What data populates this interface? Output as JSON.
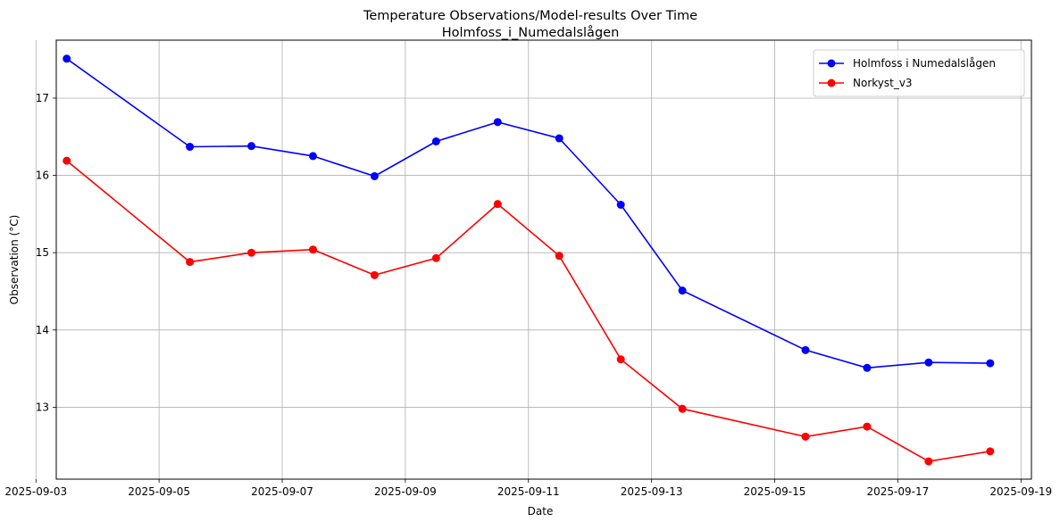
{
  "chart_data": {
    "type": "line",
    "title": "Temperature Observations/Model-results Over Time",
    "subtitle": "Holmfoss_i_Numedalslågen",
    "xlabel": "Date",
    "ylabel": "Observation (°C)",
    "grid": true,
    "legend_position": "top-right",
    "x_day_range": [
      3.33,
      19.17
    ],
    "xticks": [
      {
        "label": "2025-09-03",
        "day": 3
      },
      {
        "label": "2025-09-05",
        "day": 5
      },
      {
        "label": "2025-09-07",
        "day": 7
      },
      {
        "label": "2025-09-09",
        "day": 9
      },
      {
        "label": "2025-09-11",
        "day": 11
      },
      {
        "label": "2025-09-13",
        "day": 13
      },
      {
        "label": "2025-09-15",
        "day": 15
      },
      {
        "label": "2025-09-17",
        "day": 17
      },
      {
        "label": "2025-09-19",
        "day": 19
      }
    ],
    "ylim": [
      12.07,
      17.75
    ],
    "yticks": [
      13,
      14,
      15,
      16,
      17
    ],
    "x_days": [
      3.5,
      5.5,
      6.5,
      7.5,
      8.5,
      9.5,
      10.5,
      11.5,
      12.5,
      13.5,
      15.5,
      16.5,
      17.5,
      18.5
    ],
    "series": [
      {
        "name": "Holmfoss i Numedalslågen",
        "color": "#0000ff",
        "values": [
          17.51,
          16.37,
          16.38,
          16.25,
          15.99,
          16.44,
          16.69,
          16.48,
          15.62,
          14.51,
          13.74,
          13.51,
          13.58,
          13.57
        ]
      },
      {
        "name": "Norkyst_v3",
        "color": "#ff0000",
        "values": [
          16.19,
          14.88,
          15.0,
          15.04,
          14.71,
          14.93,
          15.63,
          14.96,
          13.62,
          12.98,
          12.62,
          12.75,
          12.3,
          12.43
        ]
      }
    ]
  }
}
